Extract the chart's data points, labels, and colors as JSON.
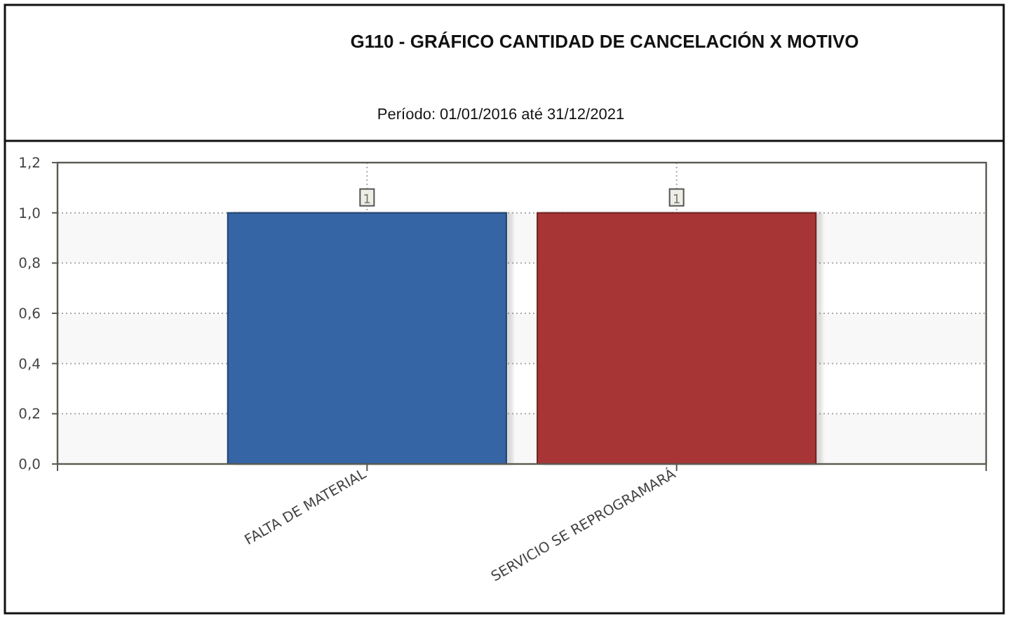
{
  "chart_data": {
    "type": "bar",
    "title": "G110 - GRÁFICO CANTIDAD DE CANCELACIÓN X MOTIVO",
    "subtitle": "Período: 01/01/2016 até 31/12/2021",
    "categories": [
      "FALTA DE MATERIAL",
      "SERVICIO SE REPROGRAMARÁ"
    ],
    "values": [
      1,
      1
    ],
    "colors": [
      "#3565a5",
      "#a83434"
    ],
    "ylim": [
      0,
      1.2
    ],
    "yticks": [
      {
        "value": 0,
        "label": "0,0"
      },
      {
        "value": 0.2,
        "label": "0,2"
      },
      {
        "value": 0.4,
        "label": "0,4"
      },
      {
        "value": 0.6,
        "label": "0,6"
      },
      {
        "value": 0.8,
        "label": "0,8"
      },
      {
        "value": 1,
        "label": "1,0"
      },
      {
        "value": 1.2,
        "label": "1,2"
      }
    ],
    "grid": true,
    "data_labels": true
  }
}
